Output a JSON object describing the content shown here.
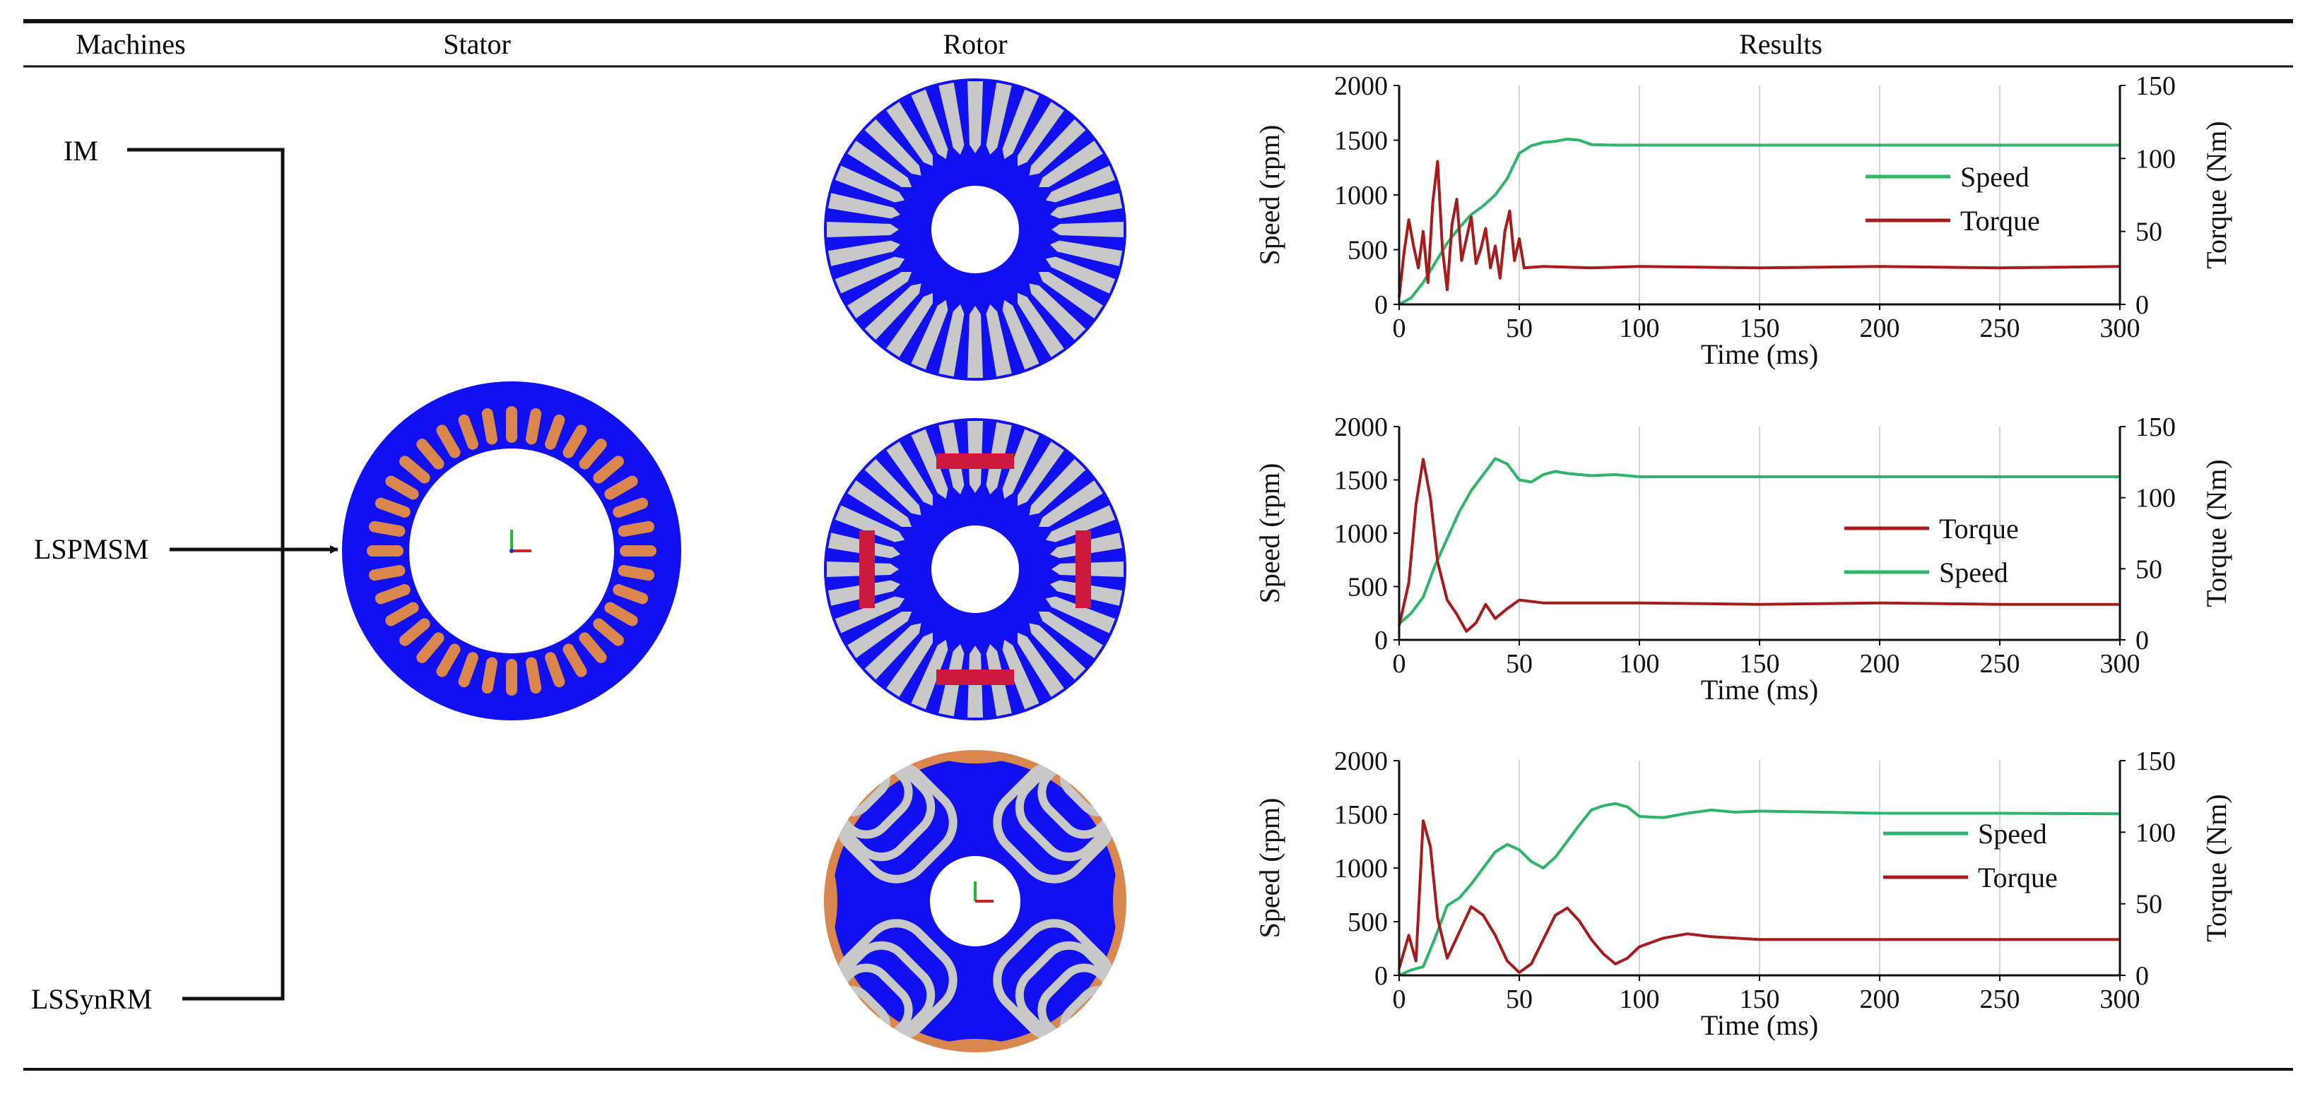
{
  "table": {
    "headers": [
      "Machines",
      "Stator",
      "Rotor",
      "Results"
    ],
    "machines": [
      "IM",
      "LSPMSM",
      "LSSynRM"
    ]
  },
  "colors": {
    "core": "#1010f0",
    "slot": "#c8c8c8",
    "winding": "#d9874f",
    "magnet": "#cc1a3e",
    "speed": "#2fb56a",
    "torque": "#a61b1b",
    "axis": "#111111",
    "grid": "#d4d4d4"
  },
  "chart_data": [
    {
      "type": "line",
      "machine": "IM",
      "xlabel": "Time (ms)",
      "ylabel": "Speed (rpm)",
      "y2label": "Torque (Nm)",
      "xlim": [
        0,
        300
      ],
      "ylim": [
        0,
        2000
      ],
      "y2lim": [
        0,
        150
      ],
      "xticks": [
        "0",
        "50",
        "100",
        "150",
        "200",
        "250",
        "300"
      ],
      "yticks": [
        "0",
        "500",
        "1000",
        "1500",
        "2000"
      ],
      "y2ticks": [
        "0",
        "50",
        "100",
        "150"
      ],
      "legend": [
        "Speed",
        "Torque"
      ],
      "series": [
        {
          "name": "Speed",
          "axis": "left",
          "x": [
            0,
            5,
            10,
            15,
            20,
            25,
            30,
            35,
            40,
            45,
            50,
            55,
            60,
            65,
            70,
            75,
            80,
            90,
            100,
            150,
            200,
            250,
            300
          ],
          "y": [
            0,
            60,
            200,
            380,
            560,
            700,
            820,
            900,
            1000,
            1150,
            1380,
            1450,
            1480,
            1490,
            1510,
            1500,
            1460,
            1455,
            1455,
            1455,
            1455,
            1455,
            1455
          ]
        },
        {
          "name": "Torque",
          "axis": "right",
          "x": [
            0,
            2,
            4,
            6,
            8,
            10,
            12,
            14,
            16,
            18,
            20,
            22,
            24,
            26,
            28,
            30,
            32,
            34,
            36,
            38,
            40,
            42,
            44,
            46,
            48,
            50,
            52,
            60,
            80,
            100,
            150,
            200,
            250,
            300
          ],
          "y": [
            5,
            35,
            58,
            40,
            25,
            50,
            15,
            70,
            98,
            38,
            10,
            55,
            72,
            30,
            45,
            60,
            28,
            38,
            52,
            25,
            40,
            18,
            50,
            64,
            30,
            45,
            25,
            26,
            25,
            26,
            25,
            26,
            25,
            26
          ]
        }
      ]
    },
    {
      "type": "line",
      "machine": "LSPMSM",
      "xlabel": "Time (ms)",
      "ylabel": "Speed (rpm)",
      "y2label": "Torque (Nm)",
      "xlim": [
        0,
        300
      ],
      "ylim": [
        0,
        2000
      ],
      "y2lim": [
        0,
        150
      ],
      "xticks": [
        "0",
        "50",
        "100",
        "150",
        "200",
        "250",
        "300"
      ],
      "yticks": [
        "0",
        "500",
        "1000",
        "1500",
        "2000"
      ],
      "y2ticks": [
        "0",
        "50",
        "100",
        "150"
      ],
      "legend": [
        "Torque",
        "Speed"
      ],
      "series": [
        {
          "name": "Speed",
          "axis": "left",
          "x": [
            0,
            5,
            10,
            15,
            20,
            25,
            30,
            35,
            40,
            45,
            50,
            55,
            60,
            65,
            70,
            80,
            90,
            100,
            150,
            200,
            250,
            300
          ],
          "y": [
            150,
            250,
            400,
            700,
            950,
            1200,
            1400,
            1550,
            1700,
            1650,
            1500,
            1480,
            1550,
            1580,
            1560,
            1540,
            1550,
            1530,
            1530,
            1530,
            1530,
            1530
          ]
        },
        {
          "name": "Torque",
          "axis": "right",
          "x": [
            0,
            4,
            7,
            10,
            13,
            16,
            20,
            24,
            28,
            32,
            36,
            40,
            45,
            50,
            55,
            60,
            100,
            150,
            200,
            250,
            300
          ],
          "y": [
            10,
            40,
            95,
            127,
            100,
            55,
            28,
            18,
            6,
            12,
            25,
            15,
            22,
            28,
            27,
            26,
            26,
            25,
            26,
            25,
            25
          ]
        }
      ]
    },
    {
      "type": "line",
      "machine": "LSSynRM",
      "xlabel": "Time (ms)",
      "ylabel": "Speed (rpm)",
      "y2label": "Torque (Nm)",
      "xlim": [
        0,
        300
      ],
      "ylim": [
        0,
        2000
      ],
      "y2lim": [
        0,
        150
      ],
      "xticks": [
        "0",
        "50",
        "100",
        "150",
        "200",
        "250",
        "300"
      ],
      "yticks": [
        "0",
        "500",
        "1000",
        "1500",
        "2000"
      ],
      "y2ticks": [
        "0",
        "50",
        "100",
        "150"
      ],
      "legend": [
        "Speed",
        "Torque"
      ],
      "series": [
        {
          "name": "Speed",
          "axis": "left",
          "x": [
            0,
            5,
            10,
            15,
            20,
            25,
            30,
            35,
            40,
            45,
            50,
            55,
            60,
            65,
            70,
            75,
            80,
            85,
            90,
            95,
            100,
            110,
            120,
            130,
            140,
            150,
            200,
            250,
            300
          ],
          "y": [
            0,
            50,
            80,
            350,
            650,
            720,
            850,
            1000,
            1150,
            1220,
            1170,
            1060,
            1000,
            1100,
            1250,
            1400,
            1540,
            1580,
            1600,
            1570,
            1480,
            1470,
            1510,
            1540,
            1520,
            1530,
            1510,
            1510,
            1505
          ]
        },
        {
          "name": "Torque",
          "axis": "right",
          "x": [
            0,
            4,
            7,
            10,
            13,
            16,
            20,
            25,
            30,
            35,
            40,
            45,
            50,
            55,
            60,
            65,
            70,
            75,
            80,
            85,
            90,
            95,
            100,
            110,
            120,
            130,
            150,
            200,
            250,
            300
          ],
          "y": [
            5,
            28,
            10,
            108,
            90,
            40,
            12,
            30,
            48,
            42,
            28,
            10,
            2,
            8,
            25,
            42,
            47,
            38,
            25,
            15,
            8,
            12,
            20,
            26,
            29,
            27,
            25,
            25,
            25,
            25
          ]
        }
      ]
    }
  ]
}
